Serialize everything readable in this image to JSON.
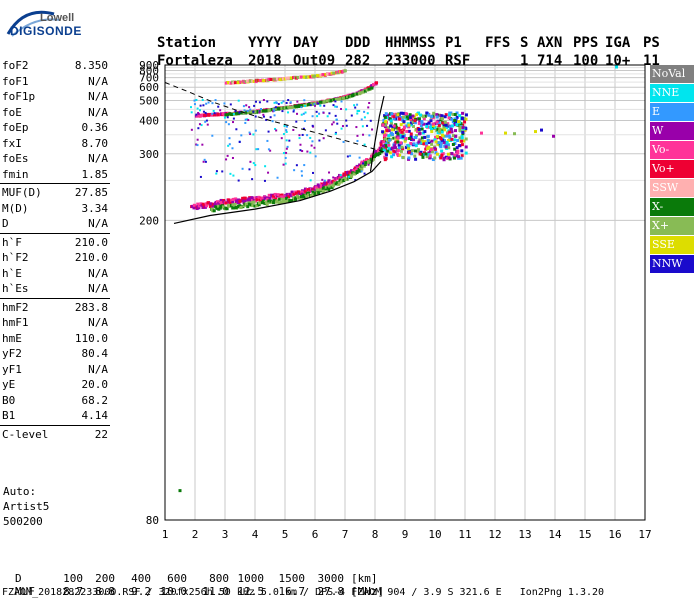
{
  "logo": {
    "line1": "Lowell",
    "line2": "DIGISONDE"
  },
  "header": {
    "labels": [
      "Station",
      "YYYY",
      "DAY",
      "DDD",
      "HHMMSS",
      "P1",
      "FFS",
      "S",
      "AXN",
      "PPS",
      "IGA",
      "PS"
    ],
    "values": [
      "Fortaleza",
      "2018",
      "Out09",
      "282",
      "233000",
      "RSF",
      "",
      "1",
      "714",
      "100",
      "10+",
      "11"
    ]
  },
  "params": [
    [
      [
        "foF2",
        "8.350"
      ],
      [
        "foF1",
        "N/A"
      ],
      [
        "foF1p",
        "N/A"
      ],
      [
        "foE",
        "N/A"
      ],
      [
        "foEp",
        "0.36"
      ],
      [
        "fxI",
        "8.70"
      ],
      [
        "foEs",
        "N/A"
      ],
      [
        "fmin",
        "1.85"
      ]
    ],
    [
      [
        "MUF(D)",
        "27.85"
      ],
      [
        "M(D)",
        "3.34"
      ],
      [
        "D",
        "N/A"
      ]
    ],
    [
      [
        "h`F",
        "210.0"
      ],
      [
        "h`F2",
        "210.0"
      ],
      [
        "h`E",
        "N/A"
      ],
      [
        "h`Es",
        "N/A"
      ]
    ],
    [
      [
        "hmF2",
        "283.8"
      ],
      [
        "hmF1",
        "N/A"
      ],
      [
        "hmE",
        "110.0"
      ],
      [
        "yF2",
        "80.4"
      ],
      [
        "yF1",
        "N/A"
      ],
      [
        "yE",
        "20.0"
      ],
      [
        "B0",
        "68.2"
      ],
      [
        "B1",
        "4.14"
      ]
    ],
    [
      [
        "C-level",
        "22"
      ]
    ]
  ],
  "autoscaling": {
    "line1": "Auto:",
    "line2": "Artist5",
    "line3": "500200"
  },
  "legend": [
    {
      "label": "NoVal",
      "color": "#808080"
    },
    {
      "label": "NNE",
      "color": "#00e5ee"
    },
    {
      "label": "E",
      "color": "#3399ff"
    },
    {
      "label": "W",
      "color": "#9900aa"
    },
    {
      "label": "Vo-",
      "color": "#ff3399"
    },
    {
      "label": "Vo+",
      "color": "#ee0033"
    },
    {
      "label": "SSW",
      "color": "#ffb0b0"
    },
    {
      "label": "X-",
      "color": "#0a7a0a"
    },
    {
      "label": "X+",
      "color": "#88bb55"
    },
    {
      "label": "SSE",
      "color": "#dddd00"
    },
    {
      "label": "NNW",
      "color": "#1a0acc"
    }
  ],
  "chart_data": {
    "type": "scatter",
    "xlim": [
      1,
      17
    ],
    "ylim": [
      80,
      900
    ],
    "x_ticks": [
      1,
      2,
      3,
      4,
      5,
      6,
      7,
      8,
      9,
      10,
      11,
      12,
      13,
      14,
      15,
      16,
      17
    ],
    "y_ticks": [
      80,
      200,
      300,
      400,
      500,
      600,
      700,
      800,
      900
    ],
    "y_scale": "reciprocal",
    "grid": true,
    "traces": {
      "o_first_hop": [
        [
          1.85,
          214
        ],
        [
          2.5,
          218
        ],
        [
          3.5,
          222
        ],
        [
          4.5,
          226
        ],
        [
          5.5,
          232
        ],
        [
          6.5,
          248
        ],
        [
          7.2,
          265
        ],
        [
          7.8,
          290
        ],
        [
          8.1,
          315
        ],
        [
          8.3,
          350
        ],
        [
          8.35,
          390
        ]
      ],
      "x_first_hop": [
        [
          2.5,
          212
        ],
        [
          3.5,
          216
        ],
        [
          4.5,
          220
        ],
        [
          5.5,
          226
        ],
        [
          6.5,
          240
        ],
        [
          7.3,
          262
        ],
        [
          7.9,
          290
        ],
        [
          8.4,
          325
        ],
        [
          8.65,
          390
        ]
      ],
      "o_second_hop": [
        [
          2.0,
          420
        ],
        [
          3.0,
          428
        ],
        [
          4.0,
          440
        ],
        [
          5.0,
          460
        ],
        [
          6.0,
          485
        ],
        [
          6.8,
          515
        ],
        [
          7.3,
          545
        ],
        [
          7.7,
          585
        ],
        [
          8.0,
          640
        ]
      ],
      "x_second_hop": [
        [
          3.0,
          425
        ],
        [
          4.0,
          438
        ],
        [
          5.0,
          458
        ],
        [
          6.0,
          482
        ],
        [
          7.0,
          520
        ],
        [
          7.5,
          555
        ],
        [
          7.9,
          600
        ]
      ],
      "third_hop": [
        [
          3.0,
          640
        ],
        [
          4.0,
          662
        ],
        [
          5.0,
          690
        ],
        [
          6.0,
          720
        ],
        [
          6.5,
          750
        ],
        [
          7.0,
          800
        ]
      ]
    },
    "spread_f_region": {
      "x": [
        8.2,
        11.0
      ],
      "y": [
        290,
        440
      ]
    },
    "model_profile": [
      [
        1.3,
        197
      ],
      [
        2.5,
        205
      ],
      [
        4.0,
        212
      ],
      [
        5.5,
        222
      ],
      [
        6.5,
        234
      ],
      [
        7.3,
        248
      ],
      [
        7.9,
        265
      ],
      [
        8.2,
        283.8
      ]
    ],
    "model_profile_upper": [
      [
        7.85,
        265
      ],
      [
        8.0,
        330
      ],
      [
        8.15,
        420
      ],
      [
        8.3,
        530
      ]
    ],
    "muf_curve": [
      [
        1.0,
        645
      ],
      [
        1.8,
        560
      ],
      [
        2.6,
        490
      ],
      [
        3.5,
        440
      ],
      [
        4.5,
        400
      ],
      [
        5.5,
        370
      ],
      [
        6.5,
        345
      ],
      [
        7.5,
        322
      ],
      [
        8.4,
        302
      ]
    ]
  },
  "footer": {
    "d_label": "D",
    "d_values": [
      "100",
      "200",
      "400",
      "600",
      "800",
      "1000",
      "1500",
      "3000"
    ],
    "d_unit": "[km]",
    "muf_label": "MUF",
    "muf_values": [
      "8.7",
      "8.8",
      "9.2",
      "10.0",
      "11.0",
      "12.5",
      "16.7",
      "27.8"
    ],
    "muf_unit": "[MHz]",
    "info": "FZAOM_2018282233000.RSF / 320fx256h 50 kHz 5.0 km / DPS-4 FZAOM 904 / 3.9 S 321.6 E   Ion2Png 1.3.20"
  }
}
